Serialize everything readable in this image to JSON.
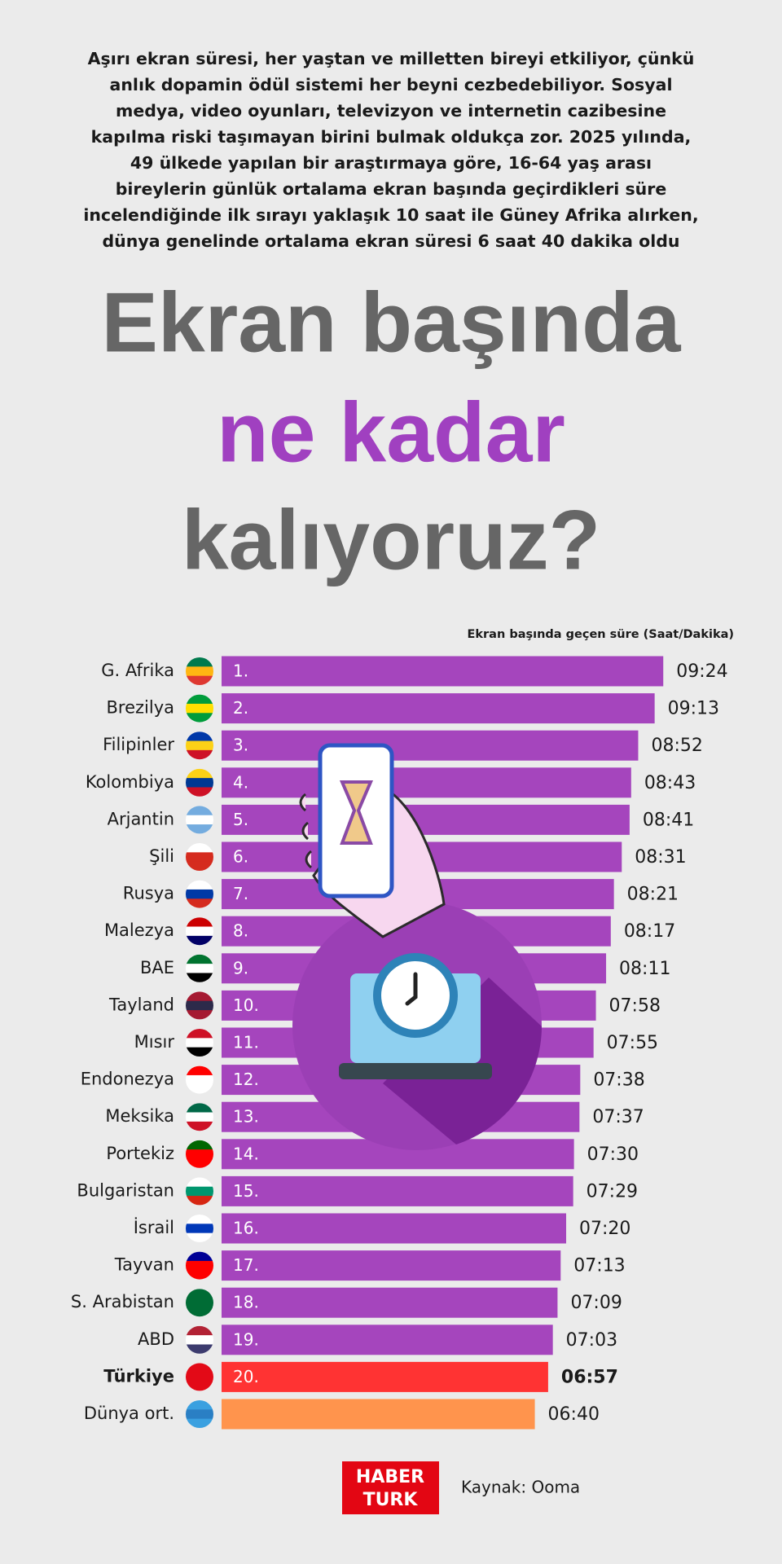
{
  "intro": [
    "Aşırı ekran süresi, her yaştan ve milletten bireyi etkiliyor, çünkü",
    "anlık dopamin ödül sistemi her beyni cezbedebiliyor. Sosyal",
    "medya, video oyunları, televizyon ve internetin cazibesine",
    "kapılma riski taşımayan birini bulmak oldukça zor. 2025 yılında,",
    "49 ülkede yapılan bir araştırmaya göre, 16-64 yaş arası",
    "bireylerin günlük ortalama ekran başında geçirdikleri süre",
    "incelendiğinde ilk sırayı yaklaşık 10 saat ile Güney Afrika alırken,",
    "dünya genelinde ortalama ekran süresi 6 saat 40 dakika oldu"
  ],
  "headline": [
    "Ekran başında",
    "ne kadar",
    "kalıyoruz?"
  ],
  "chart_data": {
    "type": "bar",
    "orientation": "horizontal",
    "axis_title": "Ekran başında geçen süre (Saat/Dakika)",
    "categories": [
      "G. Afrika",
      "Brezilya",
      "Filipinler",
      "Kolombiya",
      "Arjantin",
      "Şili",
      "Rusya",
      "Malezya",
      "BAE",
      "Tayland",
      "Mısır",
      "Endonezya",
      "Meksika",
      "Portekiz",
      "Bulgaristan",
      "İsrail",
      "Tayvan",
      "S. Arabistan",
      "ABD",
      "Türkiye",
      "Dünya ort."
    ],
    "ranks": [
      "1.",
      "2.",
      "3.",
      "4.",
      "5.",
      "6.",
      "7.",
      "8.",
      "9.",
      "10.",
      "11.",
      "12.",
      "13.",
      "14.",
      "15.",
      "16.",
      "17.",
      "18.",
      "19.",
      "20.",
      null
    ],
    "values": [
      564,
      553,
      532,
      523,
      521,
      511,
      501,
      497,
      491,
      478,
      475,
      458,
      457,
      450,
      449,
      440,
      433,
      429,
      423,
      417,
      400
    ],
    "value_labels": [
      "09:24",
      "09:13",
      "08:52",
      "08:43",
      "08:41",
      "08:31",
      "08:21",
      "08:17",
      "08:11",
      "07:58",
      "07:55",
      "07:38",
      "07:37",
      "07:30",
      "07:29",
      "07:20",
      "07:13",
      "07:09",
      "07:03",
      "06:57",
      "06:40"
    ],
    "colors": [
      "#a545bd",
      "#a545bd",
      "#a545bd",
      "#a545bd",
      "#a545bd",
      "#a545bd",
      "#a545bd",
      "#a545bd",
      "#a545bd",
      "#a545bd",
      "#a545bd",
      "#a545bd",
      "#a545bd",
      "#a545bd",
      "#a545bd",
      "#a545bd",
      "#a545bd",
      "#a545bd",
      "#a545bd",
      "#ff3333",
      "#ff944d"
    ],
    "bold_index": 19,
    "xlim": [
      0,
      570
    ]
  },
  "footer": {
    "logo": [
      "HABER",
      "TURK"
    ],
    "source": "Kaynak: Ooma"
  }
}
